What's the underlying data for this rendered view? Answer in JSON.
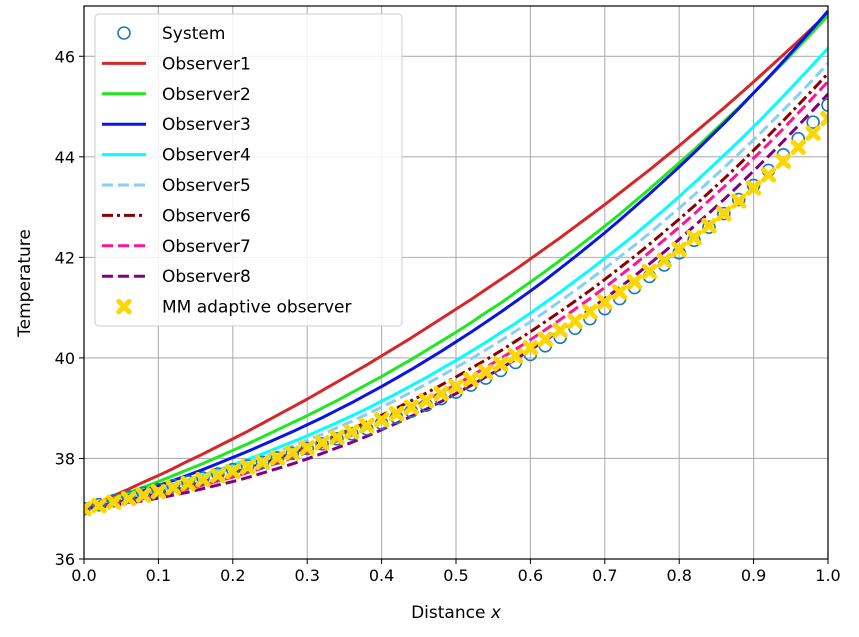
{
  "chart_data": {
    "type": "line",
    "xlabel": "Distance",
    "xlabel_var": "x",
    "ylabel": "Temperature",
    "xlim": [
      0.0,
      1.0
    ],
    "ylim": [
      36,
      47
    ],
    "xticks": [
      0.0,
      0.1,
      0.2,
      0.3,
      0.4,
      0.5,
      0.6,
      0.7,
      0.8,
      0.9,
      1.0
    ],
    "xtick_labels": [
      "0.0",
      "0.1",
      "0.2",
      "0.3",
      "0.4",
      "0.5",
      "0.6",
      "0.7",
      "0.8",
      "0.9",
      "1.0"
    ],
    "yticks": [
      36,
      38,
      40,
      42,
      44,
      46
    ],
    "ytick_labels": [
      "36",
      "38",
      "40",
      "42",
      "44",
      "46"
    ],
    "grid": true,
    "legend_position": "upper-left",
    "x": [
      0.0,
      0.02,
      0.04,
      0.06,
      0.08,
      0.1,
      0.12,
      0.14,
      0.16,
      0.18,
      0.2,
      0.22,
      0.24,
      0.26,
      0.28,
      0.3,
      0.32,
      0.34,
      0.36,
      0.38,
      0.4,
      0.42,
      0.44,
      0.46,
      0.48,
      0.5,
      0.52,
      0.54,
      0.56,
      0.58,
      0.6,
      0.62,
      0.64,
      0.66,
      0.68,
      0.7,
      0.72,
      0.74,
      0.76,
      0.78,
      0.8,
      0.82,
      0.84,
      0.86,
      0.88,
      0.9,
      0.92,
      0.94,
      0.96,
      0.98,
      1.0
    ],
    "series": [
      {
        "name": "System",
        "style": "open-circle",
        "color": "#1f77b4",
        "width": 0,
        "values": [
          37.0,
          37.08,
          37.16,
          37.23,
          37.31,
          37.38,
          37.46,
          37.53,
          37.61,
          37.69,
          37.78,
          37.85,
          37.92,
          38.01,
          38.1,
          38.2,
          38.29,
          38.39,
          38.49,
          38.59,
          38.7,
          38.82,
          38.94,
          39.06,
          39.19,
          39.32,
          39.46,
          39.6,
          39.75,
          39.91,
          40.07,
          40.24,
          40.41,
          40.59,
          40.78,
          40.98,
          41.18,
          41.4,
          41.62,
          41.85,
          42.09,
          42.34,
          42.6,
          42.87,
          43.15,
          43.43,
          43.73,
          44.04,
          44.36,
          44.69,
          45.03
        ]
      },
      {
        "name": "Observer1",
        "style": "solid",
        "color": "#d62728",
        "width": 3,
        "values": [
          37.0,
          37.13,
          37.26,
          37.39,
          37.53,
          37.66,
          37.8,
          37.95,
          38.09,
          38.24,
          38.39,
          38.54,
          38.7,
          38.86,
          39.02,
          39.18,
          39.35,
          39.52,
          39.69,
          39.86,
          40.04,
          40.22,
          40.4,
          40.59,
          40.78,
          40.97,
          41.16,
          41.36,
          41.56,
          41.76,
          41.97,
          42.18,
          42.39,
          42.61,
          42.83,
          43.05,
          43.28,
          43.51,
          43.74,
          43.98,
          44.22,
          44.47,
          44.72,
          44.97,
          45.23,
          45.49,
          45.76,
          46.03,
          46.3,
          46.58,
          46.86
        ]
      },
      {
        "name": "Observer2",
        "style": "solid",
        "color": "#1ee81e",
        "width": 3,
        "values": [
          37.0,
          37.1,
          37.21,
          37.32,
          37.43,
          37.54,
          37.66,
          37.78,
          37.9,
          38.03,
          38.16,
          38.29,
          38.43,
          38.57,
          38.71,
          38.85,
          39.0,
          39.15,
          39.31,
          39.47,
          39.63,
          39.8,
          39.97,
          40.15,
          40.33,
          40.51,
          40.7,
          40.9,
          41.09,
          41.3,
          41.51,
          41.72,
          41.94,
          42.16,
          42.39,
          42.62,
          42.86,
          43.11,
          43.36,
          43.62,
          43.88,
          44.14,
          44.42,
          44.7,
          44.98,
          45.27,
          45.57,
          45.87,
          46.18,
          46.49,
          46.81
        ]
      },
      {
        "name": "Observer3",
        "style": "solid",
        "color": "#0b14e6",
        "width": 3,
        "values": [
          37.0,
          37.08,
          37.17,
          37.26,
          37.36,
          37.46,
          37.56,
          37.67,
          37.78,
          37.9,
          38.02,
          38.14,
          38.27,
          38.4,
          38.53,
          38.67,
          38.81,
          38.96,
          39.11,
          39.27,
          39.43,
          39.6,
          39.77,
          39.95,
          40.13,
          40.32,
          40.51,
          40.71,
          40.91,
          41.12,
          41.33,
          41.55,
          41.78,
          42.01,
          42.25,
          42.49,
          42.74,
          43.0,
          43.26,
          43.53,
          43.8,
          44.08,
          44.37,
          44.66,
          44.96,
          45.27,
          45.58,
          45.9,
          46.23,
          46.56,
          46.9
        ]
      },
      {
        "name": "Observer4",
        "style": "solid",
        "color": "#00ffff",
        "width": 3,
        "values": [
          37.0,
          37.07,
          37.14,
          37.22,
          37.3,
          37.39,
          37.48,
          37.57,
          37.67,
          37.77,
          37.87,
          37.98,
          38.09,
          38.21,
          38.33,
          38.45,
          38.58,
          38.71,
          38.85,
          38.99,
          39.14,
          39.29,
          39.45,
          39.61,
          39.78,
          39.95,
          40.13,
          40.31,
          40.5,
          40.69,
          40.89,
          41.1,
          41.31,
          41.53,
          41.75,
          41.98,
          42.21,
          42.45,
          42.7,
          42.95,
          43.21,
          43.48,
          43.75,
          44.03,
          44.31,
          44.6,
          44.9,
          45.21,
          45.52,
          45.84,
          46.16
        ]
      },
      {
        "name": "Observer5",
        "style": "dashed",
        "color": "#87cefa",
        "width": 3,
        "values": [
          37.0,
          37.06,
          37.13,
          37.2,
          37.28,
          37.36,
          37.44,
          37.53,
          37.62,
          37.71,
          37.81,
          37.91,
          38.02,
          38.13,
          38.24,
          38.36,
          38.48,
          38.61,
          38.74,
          38.88,
          39.02,
          39.17,
          39.32,
          39.48,
          39.64,
          39.81,
          39.98,
          40.16,
          40.34,
          40.53,
          40.72,
          40.92,
          41.13,
          41.34,
          41.56,
          41.78,
          42.01,
          42.24,
          42.48,
          42.73,
          42.98,
          43.24,
          43.51,
          43.78,
          44.06,
          44.34,
          44.63,
          44.93,
          45.23,
          45.54,
          45.86
        ]
      },
      {
        "name": "Observer6",
        "style": "dashdot",
        "color": "#8b0000",
        "width": 3,
        "values": [
          37.0,
          37.05,
          37.11,
          37.17,
          37.23,
          37.3,
          37.37,
          37.45,
          37.53,
          37.62,
          37.71,
          37.8,
          37.9,
          38.0,
          38.11,
          38.22,
          38.34,
          38.46,
          38.59,
          38.72,
          38.86,
          39.0,
          39.15,
          39.3,
          39.46,
          39.62,
          39.79,
          39.96,
          40.14,
          40.33,
          40.52,
          40.72,
          40.92,
          41.13,
          41.34,
          41.56,
          41.79,
          42.02,
          42.26,
          42.51,
          42.76,
          43.02,
          43.29,
          43.56,
          43.84,
          44.13,
          44.42,
          44.72,
          45.03,
          45.34,
          45.66
        ]
      },
      {
        "name": "Observer7",
        "style": "dashed",
        "color": "#ff1493",
        "width": 3,
        "values": [
          37.0,
          37.04,
          37.09,
          37.14,
          37.2,
          37.26,
          37.33,
          37.4,
          37.47,
          37.55,
          37.63,
          37.72,
          37.81,
          37.91,
          38.01,
          38.12,
          38.23,
          38.35,
          38.47,
          38.6,
          38.73,
          38.87,
          39.01,
          39.16,
          39.31,
          39.47,
          39.64,
          39.81,
          39.99,
          40.17,
          40.36,
          40.56,
          40.76,
          40.97,
          41.18,
          41.4,
          41.63,
          41.86,
          42.1,
          42.35,
          42.6,
          42.86,
          43.13,
          43.4,
          43.68,
          43.97,
          44.26,
          44.56,
          44.87,
          45.18,
          45.5
        ]
      },
      {
        "name": "Observer8",
        "style": "dashed",
        "color": "#800080",
        "width": 3,
        "values": [
          37.0,
          37.03,
          37.07,
          37.11,
          37.16,
          37.21,
          37.27,
          37.33,
          37.4,
          37.47,
          37.54,
          37.62,
          37.71,
          37.8,
          37.89,
          37.99,
          38.1,
          38.21,
          38.32,
          38.44,
          38.57,
          38.7,
          38.84,
          38.98,
          39.13,
          39.29,
          39.45,
          39.62,
          39.79,
          39.97,
          40.16,
          40.35,
          40.55,
          40.75,
          40.96,
          41.18,
          41.4,
          41.63,
          41.87,
          42.11,
          42.36,
          42.62,
          42.88,
          43.15,
          43.43,
          43.72,
          44.01,
          44.31,
          44.62,
          44.93,
          45.25
        ]
      },
      {
        "name": "MM adaptive observer",
        "style": "x-marker",
        "color": "#ffd700",
        "width": 0,
        "values": [
          37.0,
          37.06,
          37.13,
          37.2,
          37.27,
          37.34,
          37.42,
          37.5,
          37.58,
          37.66,
          37.74,
          37.83,
          37.92,
          38.01,
          38.11,
          38.21,
          38.31,
          38.42,
          38.53,
          38.65,
          38.77,
          38.89,
          39.02,
          39.15,
          39.29,
          39.43,
          39.57,
          39.72,
          39.88,
          40.04,
          40.2,
          40.37,
          40.55,
          40.73,
          40.92,
          41.11,
          41.31,
          41.51,
          41.72,
          41.94,
          42.16,
          42.39,
          42.63,
          42.87,
          43.12,
          43.38,
          43.64,
          43.91,
          44.19,
          44.47,
          44.76
        ]
      }
    ]
  }
}
